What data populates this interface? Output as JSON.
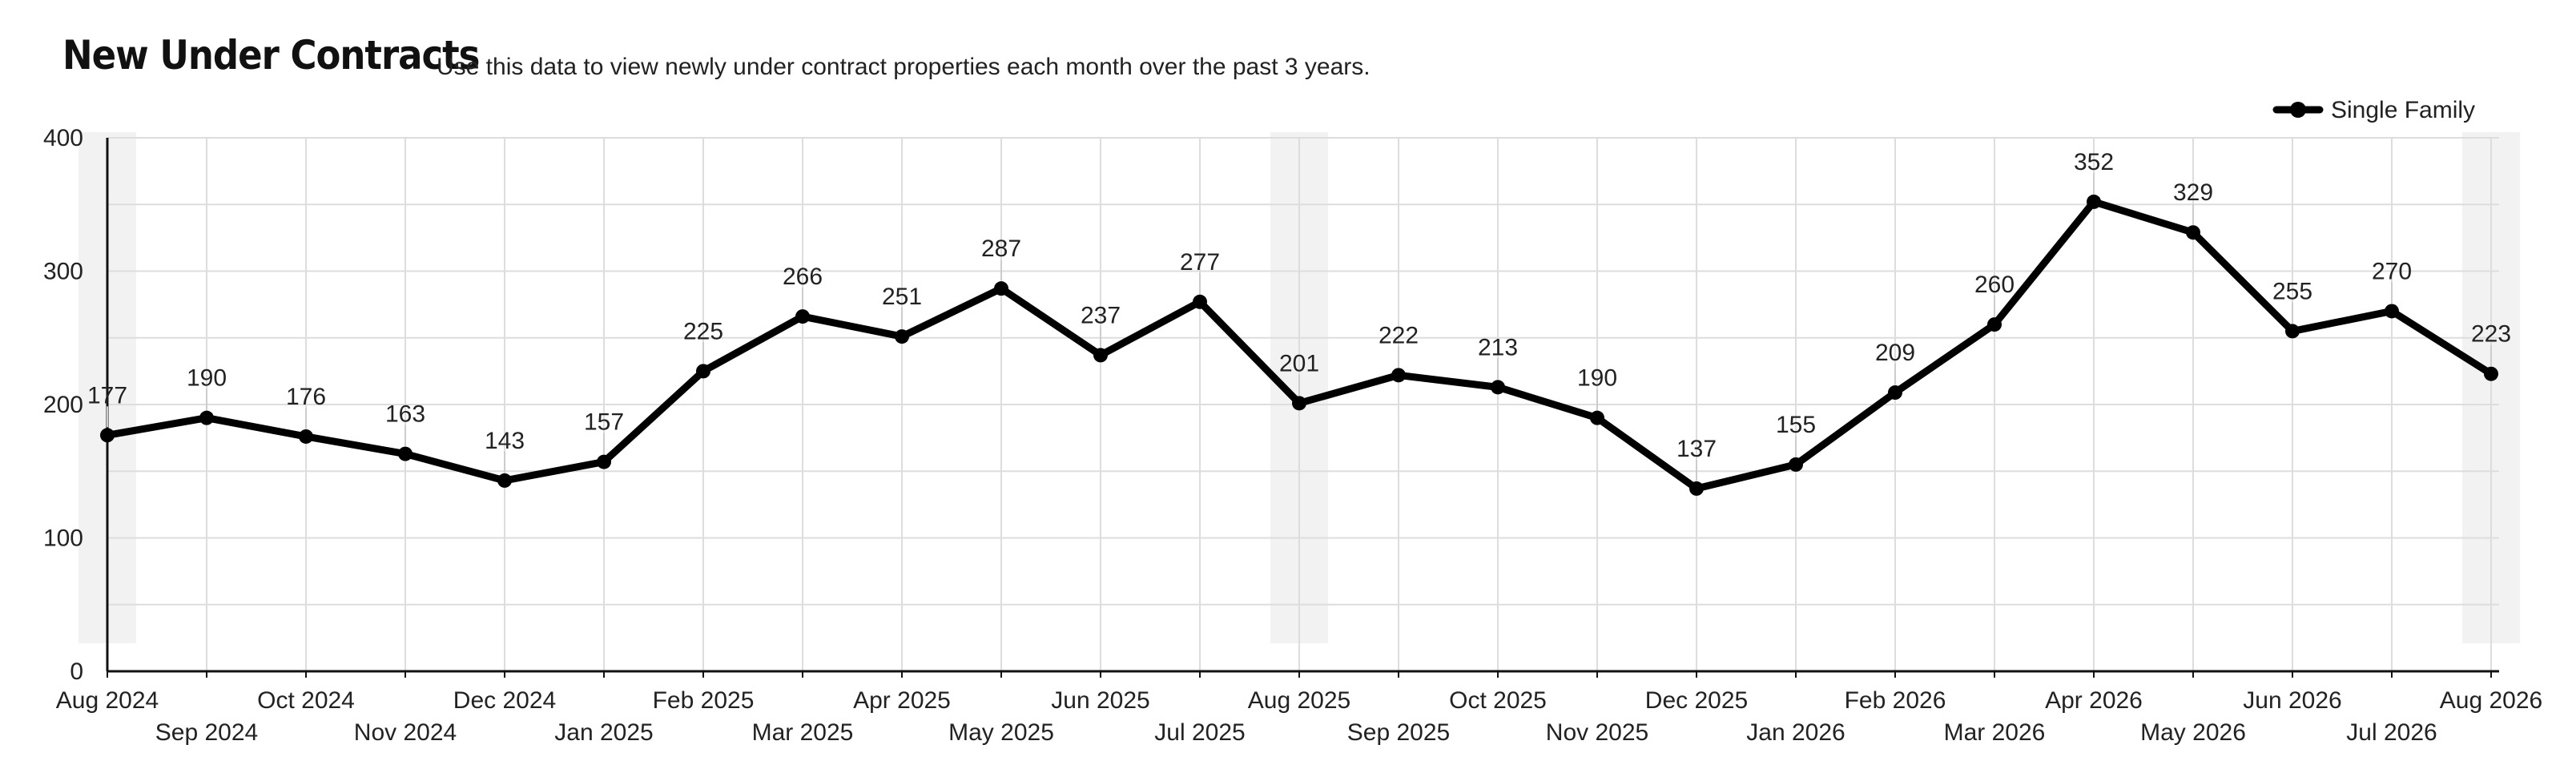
{
  "header": {
    "title": "New Under Contracts",
    "subtitle": "Use this data to view newly under contract properties each month over the past 3 years."
  },
  "colors": {
    "line": "#000000",
    "grid": "#dddddd",
    "highlight_band": "#f2f2f2",
    "text": "#222222"
  },
  "chart_data": {
    "type": "line",
    "title": "New Under Contracts",
    "subtitle": "Use this data to view newly under contract properties each month over the past 3 years.",
    "categories": [
      "Aug 2024",
      "Sep 2024",
      "Oct 2024",
      "Nov 2024",
      "Dec 2024",
      "Jan 2025",
      "Feb 2025",
      "Mar 2025",
      "Apr 2025",
      "May 2025",
      "Jun 2025",
      "Jul 2025",
      "Aug 2025",
      "Sep 2025",
      "Oct 2025",
      "Nov 2025",
      "Dec 2025",
      "Jan 2026",
      "Feb 2026",
      "Mar 2026",
      "Apr 2026",
      "May 2026",
      "Jun 2026",
      "Jul 2026",
      "Aug 2026"
    ],
    "series": [
      {
        "name": "Single Family",
        "values": [
          177,
          190,
          176,
          163,
          143,
          157,
          225,
          266,
          251,
          287,
          237,
          277,
          201,
          222,
          213,
          190,
          137,
          155,
          209,
          260,
          352,
          329,
          255,
          270,
          223
        ]
      }
    ],
    "ylim": [
      0,
      400
    ],
    "yticks": [
      0,
      100,
      200,
      300,
      400
    ],
    "highlighted_categories": [
      "Aug 2024",
      "Aug 2025",
      "Aug 2026"
    ],
    "data_labels": true,
    "grid": true,
    "legend_position": "top-right"
  }
}
